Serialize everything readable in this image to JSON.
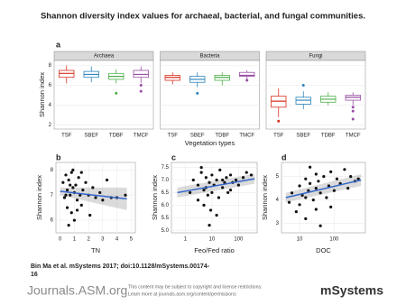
{
  "title": "Shannon diversity index values for archaeal, bacterial, and fungal communities.",
  "chart_data": [
    {
      "type": "box",
      "label": "a",
      "ylabel": "Shannon index",
      "xlabel": "Vegetation types",
      "categories": [
        "TSF",
        "SBEF",
        "TDBF",
        "TMCF"
      ],
      "colors": [
        "#d7301f",
        "#2b83ba",
        "#4daf4a",
        "#984ea3"
      ],
      "ylim": [
        1.6,
        8.5
      ],
      "yticks": [
        2,
        4,
        6,
        8
      ],
      "facets": [
        {
          "name": "Archaea",
          "boxes": [
            {
              "min": 6.2,
              "q1": 6.8,
              "median": 7.2,
              "q3": 7.5,
              "max": 8.0,
              "outliers": []
            },
            {
              "min": 6.3,
              "q1": 6.8,
              "median": 7.1,
              "q3": 7.4,
              "max": 7.9,
              "outliers": []
            },
            {
              "min": 6.2,
              "q1": 6.6,
              "median": 6.9,
              "q3": 7.2,
              "max": 7.6,
              "outliers": [
                5.2
              ]
            },
            {
              "min": 6.2,
              "q1": 6.8,
              "median": 7.1,
              "q3": 7.5,
              "max": 7.9,
              "outliers": [
                6.0,
                5.4
              ]
            }
          ]
        },
        {
          "name": "Bacteria",
          "boxes": [
            {
              "min": 6.1,
              "q1": 6.5,
              "median": 6.8,
              "q3": 7.0,
              "max": 7.3,
              "outliers": []
            },
            {
              "min": 5.8,
              "q1": 6.3,
              "median": 6.6,
              "q3": 6.9,
              "max": 7.3,
              "outliers": [
                5.2
              ]
            },
            {
              "min": 6.0,
              "q1": 6.5,
              "median": 6.8,
              "q3": 7.0,
              "max": 7.3,
              "outliers": []
            },
            {
              "min": 6.6,
              "q1": 6.9,
              "median": 7.0,
              "q3": 7.3,
              "max": 7.5,
              "outliers": [
                6.5
              ]
            }
          ]
        },
        {
          "name": "Fungi",
          "boxes": [
            {
              "min": 2.8,
              "q1": 3.8,
              "median": 4.4,
              "q3": 4.9,
              "max": 5.7,
              "outliers": [
                2.4
              ]
            },
            {
              "min": 3.6,
              "q1": 4.1,
              "median": 4.5,
              "q3": 4.8,
              "max": 5.4,
              "outliers": [
                6.0
              ]
            },
            {
              "min": 4.0,
              "q1": 4.3,
              "median": 4.6,
              "q3": 4.9,
              "max": 5.3,
              "outliers": []
            },
            {
              "min": 4.0,
              "q1": 4.5,
              "median": 4.8,
              "q3": 5.0,
              "max": 5.3,
              "outliers": [
                3.4,
                3.8,
                2.6
              ]
            }
          ]
        }
      ]
    },
    {
      "type": "scatter",
      "label": "b",
      "xlabel": "TN",
      "ylabel": "Shannon index",
      "log_x": false,
      "xlim": [
        -0.3,
        5.3
      ],
      "xticks": [
        0,
        1,
        2,
        3,
        4,
        5
      ],
      "ylim": [
        5.5,
        8.3
      ],
      "yticks": [
        6,
        7,
        8
      ],
      "x": [
        0.2,
        0.3,
        0.4,
        0.5,
        0.5,
        0.6,
        0.7,
        0.8,
        0.8,
        0.9,
        1.0,
        1.0,
        1.1,
        1.2,
        1.3,
        1.4,
        1.5,
        1.6,
        1.8,
        2.0,
        2.1,
        2.3,
        2.5,
        2.8,
        3.0,
        3.3,
        3.6,
        4.0,
        0.6,
        0.9,
        1.2,
        0.4,
        0.7,
        1.5,
        4.6
      ],
      "y": [
        7.5,
        6.9,
        7.8,
        7.2,
        6.5,
        7.6,
        7.0,
        7.9,
        6.3,
        7.3,
        7.1,
        6.0,
        7.4,
        6.8,
        7.7,
        7.0,
        6.6,
        7.2,
        7.5,
        7.0,
        6.2,
        7.3,
        6.9,
        7.1,
        6.8,
        7.6,
        6.9,
        6.9,
        5.8,
        8.0,
        6.4,
        7.0,
        7.4,
        7.9,
        7.0
      ],
      "trend": {
        "x": [
          0,
          4.7
        ],
        "y": [
          7.15,
          6.85
        ],
        "lower": [
          7.0,
          6.4
        ],
        "upper": [
          7.3,
          7.3
        ]
      }
    },
    {
      "type": "scatter",
      "label": "c",
      "xlabel": "Feo/Fed ratio",
      "ylabel": "Shannon index",
      "log_x": true,
      "xlim": [
        0.3,
        500
      ],
      "xticks": [
        1,
        10,
        100
      ],
      "ylim": [
        4.9,
        7.7
      ],
      "yticks": [
        {
          "value": 5,
          "label": "5.0"
        },
        5.5,
        {
          "value": 6,
          "label": "6.0"
        },
        6.5,
        {
          "value": 7,
          "label": "7.0"
        },
        7.5
      ],
      "x": [
        1.5,
        2,
        3,
        3,
        4,
        5,
        5,
        6,
        7,
        8,
        9,
        10,
        10,
        12,
        15,
        18,
        20,
        25,
        30,
        35,
        40,
        50,
        60,
        80,
        100,
        150,
        200,
        300,
        8,
        15,
        4,
        6,
        25,
        50
      ],
      "y": [
        6.5,
        7.0,
        6.2,
        6.8,
        7.3,
        6.0,
        6.6,
        7.1,
        6.4,
        6.9,
        5.8,
        7.2,
        6.5,
        6.8,
        7.0,
        6.3,
        7.4,
        6.7,
        6.9,
        7.1,
        6.5,
        7.2,
        6.9,
        7.0,
        6.8,
        7.1,
        7.3,
        7.2,
        5.2,
        5.6,
        7.5,
        6.7,
        7.0,
        6.6
      ],
      "trend": {
        "x": [
          0.5,
          400
        ],
        "y": [
          6.5,
          7.05
        ],
        "lower": [
          6.3,
          6.85
        ],
        "upper": [
          6.7,
          7.25
        ]
      }
    },
    {
      "type": "scatter",
      "label": "d",
      "xlabel": "DOC",
      "ylabel": "Shannon index",
      "log_x": true,
      "xlim": [
        3,
        800
      ],
      "xticks": [
        10,
        100
      ],
      "ylim": [
        2.6,
        5.6
      ],
      "yticks": [
        3,
        4,
        5
      ],
      "x": [
        5,
        6,
        8,
        10,
        10,
        12,
        15,
        15,
        18,
        20,
        25,
        30,
        30,
        35,
        40,
        50,
        60,
        70,
        80,
        100,
        120,
        150,
        200,
        250,
        300,
        400,
        500,
        20,
        40,
        80,
        15,
        30
      ],
      "y": [
        3.9,
        4.3,
        3.5,
        4.6,
        3.8,
        4.2,
        4.9,
        3.2,
        4.4,
        4.7,
        4.0,
        4.5,
        3.6,
        4.8,
        4.3,
        5.0,
        4.1,
        4.6,
        5.2,
        4.4,
        4.9,
        4.7,
        5.3,
        4.5,
        5.0,
        4.8,
        4.9,
        5.4,
        2.9,
        3.7,
        4.1,
        5.1
      ],
      "trend": {
        "x": [
          4,
          600
        ],
        "y": [
          4.1,
          4.85
        ],
        "lower": [
          3.9,
          4.6
        ],
        "upper": [
          4.3,
          5.1
        ]
      }
    }
  ],
  "citation": [
    "Bin Ma et al. mSystems 2017; doi:10.1128/mSystems.00174-",
    "16"
  ],
  "footer": {
    "site": "Journals.ASM.org",
    "notice": [
      "This content may be subject to copyright and license restrictions.",
      "Learn more at journals.asm.org/content/permissions"
    ],
    "logo": "mSystems"
  }
}
